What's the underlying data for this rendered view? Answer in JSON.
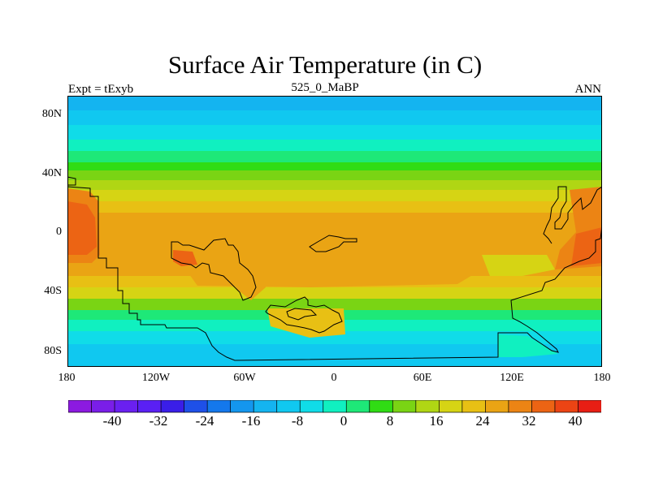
{
  "title": "Surface Air Temperature (in C)",
  "left_string": "Expt = tExyb",
  "center_string": "525_0_MaBP",
  "right_string": "ANN",
  "lat_labels": [
    "80N",
    "40N",
    "0",
    "40S",
    "80S"
  ],
  "lon_labels": [
    "180",
    "120W",
    "60W",
    "0",
    "60E",
    "120E",
    "180"
  ],
  "colorbar": {
    "colors": [
      "#8c1ae0",
      "#7a1ee8",
      "#6a20f0",
      "#5a20f4",
      "#3a1ee8",
      "#1e50e8",
      "#1478ec",
      "#1496ee",
      "#14b4f0",
      "#10c8f0",
      "#10dce8",
      "#10f0c0",
      "#1ee878",
      "#30dc14",
      "#7ad414",
      "#b0d614",
      "#d6d414",
      "#e8c014",
      "#eaa414",
      "#ec8414",
      "#ec6414",
      "#ec4414",
      "#e81e14"
    ],
    "labels": [
      "-40",
      "-32",
      "-24",
      "-16",
      "-8",
      "0",
      "8",
      "16",
      "24",
      "32",
      "40"
    ]
  },
  "map_colors": {
    "polar": "#14b4f0",
    "subpolar": "#10c8f0",
    "cool": "#10dce8",
    "mid1": "#10f0c0",
    "mid2": "#1ee878",
    "mid3": "#30dc14",
    "mid4": "#7ad414",
    "warm1": "#b0d614",
    "warm2": "#d6d414",
    "warm3": "#e8c014",
    "hot1": "#eaa414",
    "hot2": "#ec8414",
    "hot3": "#ec6414",
    "hot4": "#ec4414"
  }
}
